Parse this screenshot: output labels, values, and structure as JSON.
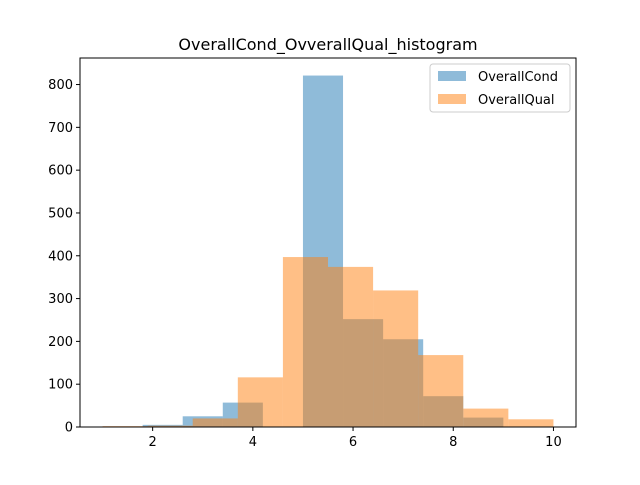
{
  "chart_data": {
    "type": "histogram",
    "title": "OverallCond_OvverallQual_histogram",
    "xlabel": "",
    "ylabel": "",
    "xlim": [
      0.55,
      10.45
    ],
    "ylim": [
      0,
      862
    ],
    "xticks": [
      2,
      4,
      6,
      8,
      10
    ],
    "yticks": [
      0,
      100,
      200,
      300,
      400,
      500,
      600,
      700,
      800
    ],
    "legend_position": "top-right",
    "grid": false,
    "series": [
      {
        "name": "OverallCond",
        "color": "#1f77b4",
        "alpha": 0.5,
        "bin_edges": [
          1.0,
          1.8,
          2.6,
          3.4,
          4.2,
          5.0,
          5.8,
          6.6,
          7.4,
          8.2,
          9.0
        ],
        "counts": [
          1,
          5,
          25,
          57,
          0,
          821,
          252,
          205,
          72,
          22
        ]
      },
      {
        "name": "OverallQual",
        "color": "#ff7f0e",
        "alpha": 0.5,
        "bin_edges": [
          1.0,
          1.9,
          2.8,
          3.7,
          4.6,
          5.5,
          6.4,
          7.3,
          8.2,
          9.1,
          10.0
        ],
        "counts": [
          2,
          3,
          20,
          116,
          397,
          374,
          319,
          168,
          43,
          18
        ]
      }
    ]
  }
}
